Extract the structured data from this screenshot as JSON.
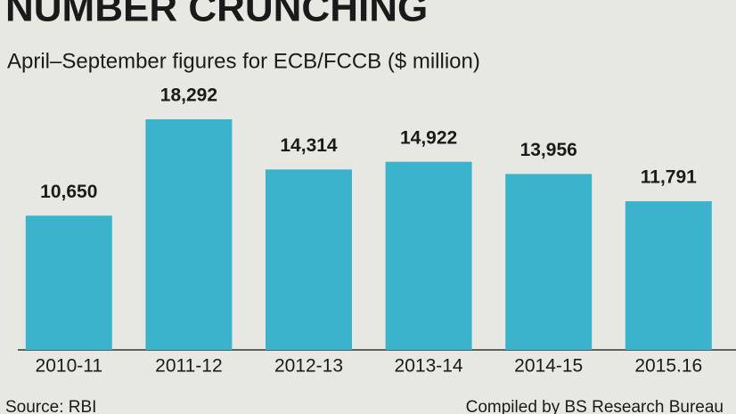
{
  "chart_data": {
    "type": "bar",
    "title": "NUMBER CRUNCHING",
    "subtitle": "April–September figures for ECB/FCCB ($ million)",
    "categories": [
      "2010-11",
      "2011-12",
      "2012-13",
      "2013-14",
      "2014-15",
      "2015.16"
    ],
    "values": [
      10650,
      18292,
      14314,
      14922,
      13956,
      11791
    ],
    "value_labels": [
      "10,650",
      "18,292",
      "14,314",
      "14,922",
      "13,956",
      "11,791"
    ],
    "color": "#3bb3cc",
    "source": "Source: RBI",
    "credit": "Compiled by BS Research Bureau"
  }
}
